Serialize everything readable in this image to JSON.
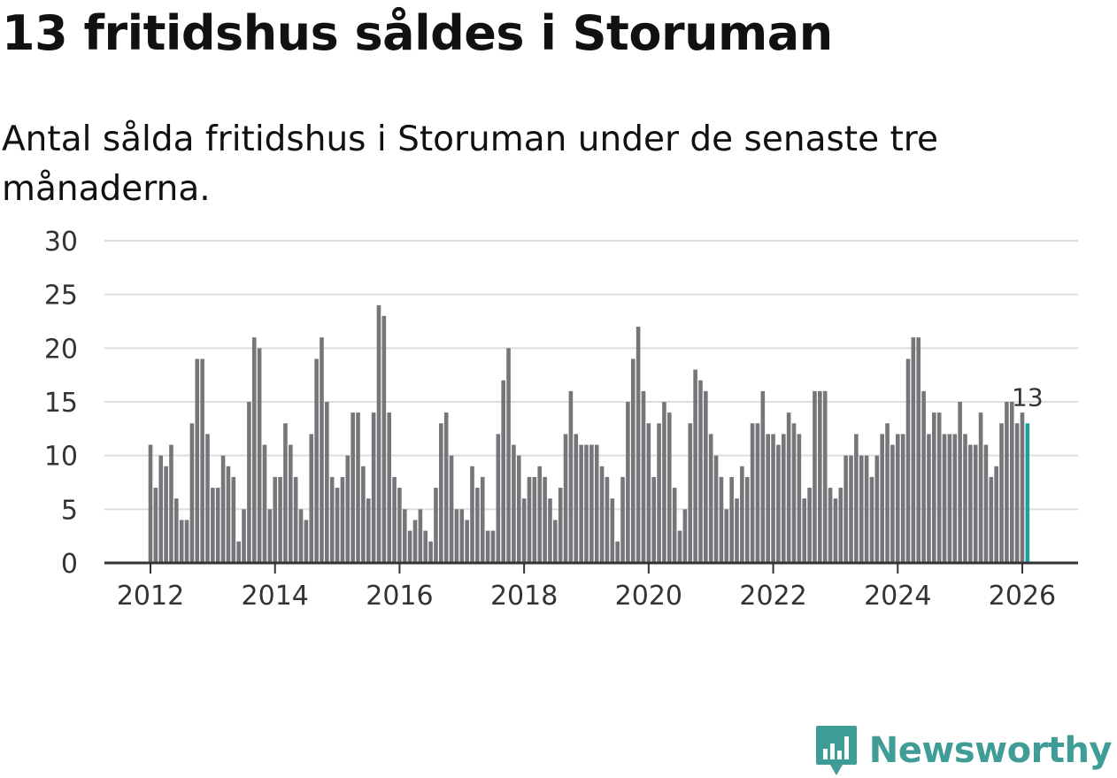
{
  "title": "13 fritidshus såldes i Storuman",
  "subtitle": "Antal sålda fritidshus i Storuman under de senaste tre månaderna.",
  "brand": {
    "name": "Newsworthy",
    "color": "#3f9c97"
  },
  "colors": {
    "bar": "#76757a",
    "highlight": "#19a39b",
    "grid": "#dddddd",
    "axis": "#333333"
  },
  "chart_data": {
    "type": "bar",
    "title": "13 fritidshus såldes i Storuman",
    "xlabel": "",
    "ylabel": "",
    "ylim": [
      0,
      30
    ],
    "yticks": [
      0,
      5,
      10,
      15,
      20,
      25,
      30
    ],
    "xticks": [
      "2012",
      "2014",
      "2016",
      "2018",
      "2020",
      "2022",
      "2024",
      "2026"
    ],
    "start": "2012-01",
    "frequency": "monthly",
    "grid": true,
    "last_label": "13",
    "values": [
      11,
      7,
      10,
      9,
      11,
      6,
      4,
      4,
      13,
      19,
      19,
      12,
      7,
      7,
      10,
      9,
      8,
      2,
      5,
      15,
      21,
      20,
      11,
      5,
      8,
      8,
      13,
      11,
      8,
      5,
      4,
      12,
      19,
      21,
      15,
      8,
      7,
      8,
      10,
      14,
      14,
      9,
      6,
      14,
      24,
      23,
      14,
      8,
      7,
      5,
      3,
      4,
      5,
      3,
      2,
      7,
      13,
      14,
      10,
      5,
      5,
      4,
      9,
      7,
      8,
      3,
      3,
      12,
      17,
      20,
      11,
      10,
      6,
      8,
      8,
      9,
      8,
      6,
      4,
      7,
      12,
      16,
      12,
      11,
      11,
      11,
      11,
      9,
      8,
      6,
      2,
      8,
      15,
      19,
      22,
      16,
      13,
      8,
      13,
      15,
      14,
      7,
      3,
      5,
      13,
      18,
      17,
      16,
      12,
      10,
      8,
      5,
      8,
      6,
      9,
      8,
      13,
      13,
      16,
      12,
      12,
      11,
      12,
      14,
      13,
      12,
      6,
      7,
      16,
      16,
      16,
      7,
      6,
      7,
      10,
      10,
      12,
      10,
      10,
      8,
      10,
      12,
      13,
      11,
      12,
      12,
      19,
      21,
      21,
      16,
      12,
      14,
      14,
      12,
      12,
      12,
      15,
      12,
      11,
      11,
      14,
      11,
      8,
      9,
      13,
      15,
      15,
      13,
      14,
      13
    ]
  }
}
